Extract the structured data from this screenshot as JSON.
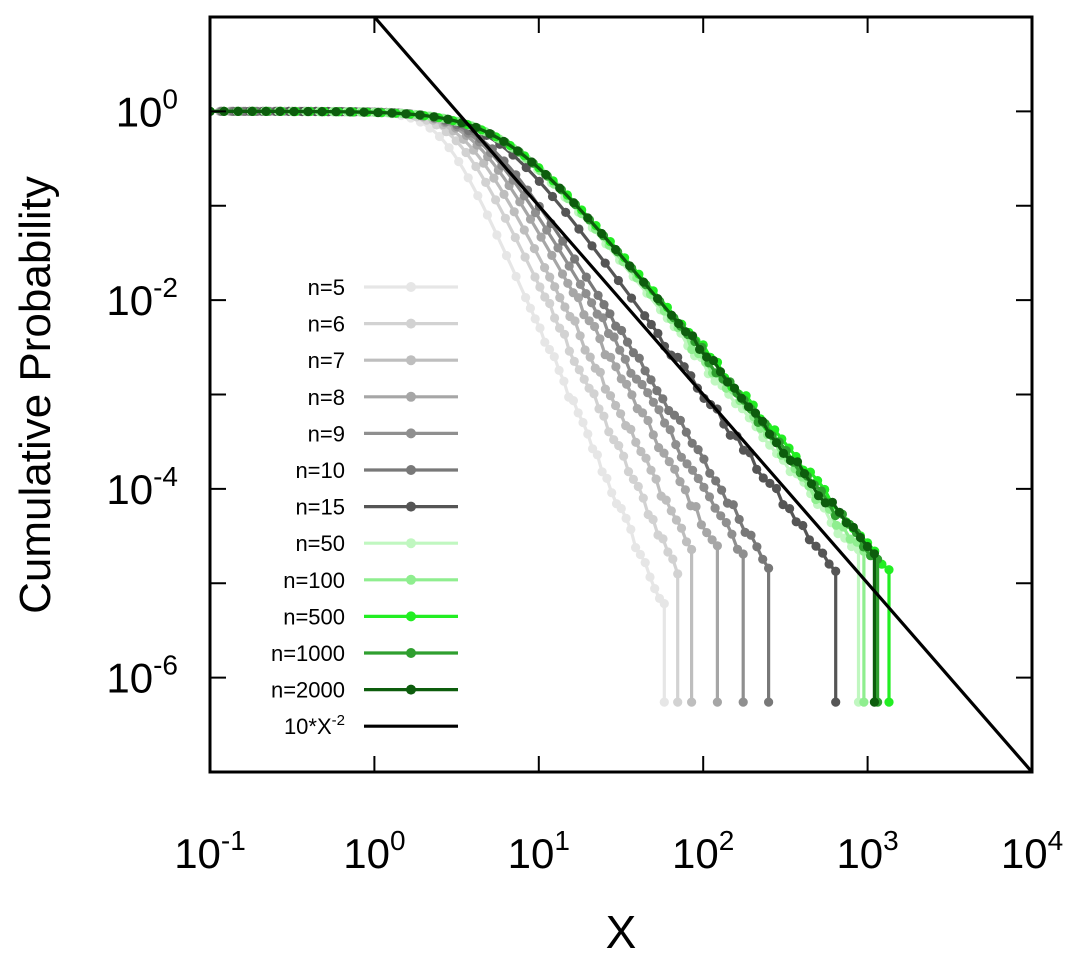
{
  "chart_data": {
    "type": "line",
    "xlabel": "X",
    "ylabel": "Cumulative Probability",
    "xscale": "log",
    "yscale": "log",
    "xlim": [
      0.1,
      10000
    ],
    "ylim": [
      1e-07,
      10
    ],
    "grid": false,
    "legend_position": "left-center",
    "x_ticks": [
      {
        "value": 0.1,
        "base": "10",
        "exp": "-1"
      },
      {
        "value": 1,
        "base": "10",
        "exp": "0"
      },
      {
        "value": 10,
        "base": "10",
        "exp": "1"
      },
      {
        "value": 100,
        "base": "10",
        "exp": "2"
      },
      {
        "value": 1000,
        "base": "10",
        "exp": "3"
      },
      {
        "value": 10000,
        "base": "10",
        "exp": "4"
      }
    ],
    "y_ticks": [
      {
        "value": 1,
        "base": "10",
        "exp": "0"
      },
      {
        "value": 0.01,
        "base": "10",
        "exp": "-2"
      },
      {
        "value": 0.0001,
        "base": "10",
        "exp": "-4"
      },
      {
        "value": 1e-06,
        "base": "10",
        "exp": "-6"
      }
    ],
    "y_minor_ticks": [
      10,
      0.1,
      0.001,
      1e-05,
      1e-07
    ],
    "series": [
      {
        "name": "n=5",
        "color": "#e6e6e6",
        "knee": 2.6,
        "slope": 3.9,
        "xmax": 58
      },
      {
        "name": "n=6",
        "color": "#d2d2d2",
        "knee": 3.1,
        "slope": 3.6,
        "xmax": 70
      },
      {
        "name": "n=7",
        "color": "#bebebe",
        "knee": 3.5,
        "slope": 3.35,
        "xmax": 85
      },
      {
        "name": "n=8",
        "color": "#a6a6a6",
        "knee": 3.9,
        "slope": 3.1,
        "xmax": 122
      },
      {
        "name": "n=9",
        "color": "#8f8f8f",
        "knee": 4.2,
        "slope": 2.9,
        "xmax": 175
      },
      {
        "name": "n=10",
        "color": "#787878",
        "knee": 4.5,
        "slope": 2.75,
        "xmax": 250
      },
      {
        "name": "n=15",
        "color": "#555555",
        "knee": 5.3,
        "slope": 2.35,
        "xmax": 640
      },
      {
        "name": "n=50",
        "color": "#c0f7c0",
        "knee": 5.8,
        "slope": 2.15,
        "xmax": 880
      },
      {
        "name": "n=100",
        "color": "#8fee8f",
        "knee": 5.85,
        "slope": 2.12,
        "xmax": 950
      },
      {
        "name": "n=500",
        "color": "#22ee22",
        "knee": 5.9,
        "slope": 2.05,
        "xmax": 1350
      },
      {
        "name": "n=1000",
        "color": "#2f9f2f",
        "knee": 5.9,
        "slope": 2.08,
        "xmax": 1150
      },
      {
        "name": "n=2000",
        "color": "#0d5d0d",
        "knee": 5.9,
        "slope": 2.08,
        "xmax": 1100
      }
    ],
    "reference_line": {
      "name": "10*X",
      "exp": "-2",
      "color": "#000000",
      "coef": 10,
      "power": -2
    }
  }
}
